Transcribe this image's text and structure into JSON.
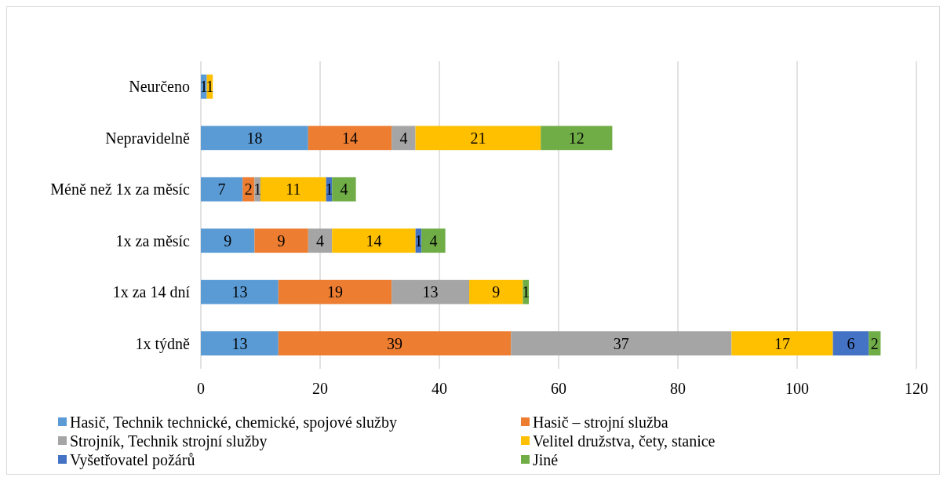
{
  "chart_data": {
    "type": "bar",
    "orientation": "horizontal",
    "stacked": true,
    "categories": [
      "Neurčeno",
      "Nepravidelně",
      "Méně než 1x za měsíc",
      "1x za měsíc",
      "1x za 14 dní",
      "1x týdně"
    ],
    "series": [
      {
        "name": "Hasič, Technik technické, chemické, spojové služby",
        "color": "#5b9bd5",
        "values": [
          1,
          18,
          7,
          9,
          13,
          13
        ]
      },
      {
        "name": "Hasič – strojní služba",
        "color": "#ed7d31",
        "values": [
          null,
          14,
          2,
          9,
          19,
          39
        ]
      },
      {
        "name": "Strojník, Technik strojní služby",
        "color": "#a5a5a5",
        "values": [
          null,
          4,
          1,
          4,
          13,
          37
        ]
      },
      {
        "name": "Velitel družstva, čety, stanice",
        "color": "#ffc000",
        "values": [
          1,
          21,
          11,
          14,
          9,
          17
        ]
      },
      {
        "name": "Vyšetřovatel požárů",
        "color": "#4472c4",
        "values": [
          null,
          null,
          1,
          1,
          null,
          6
        ]
      },
      {
        "name": "Jiné",
        "color": "#70ad47",
        "values": [
          null,
          12,
          4,
          4,
          1,
          2
        ]
      }
    ],
    "xlim": [
      0,
      120
    ],
    "xticks": [
      0,
      20,
      40,
      60,
      80,
      100,
      120
    ],
    "grid": "x",
    "legend": "bottom",
    "data_labels": true
  }
}
